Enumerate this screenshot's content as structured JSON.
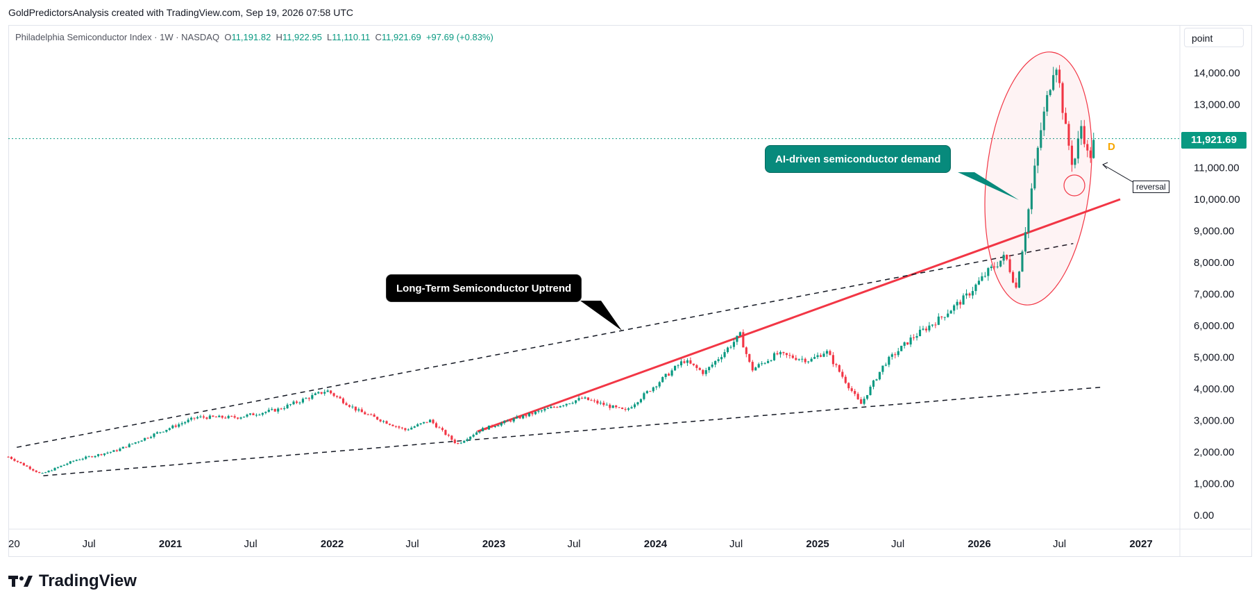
{
  "header": {
    "text": "GoldPredictorsAnalysis created with TradingView.com, Sep 19, 2026 07:58 UTC"
  },
  "legend": {
    "symbol": "Philadelphia Semiconductor Index · 1W · NASDAQ",
    "open_label": "O",
    "open": "11,191.82",
    "high_label": "H",
    "high": "11,922.95",
    "low_label": "L",
    "low": "11,110.11",
    "close_label": "C",
    "close": "11,921.69",
    "change": "+97.69 (+0.83%)"
  },
  "unit_label": "point",
  "last_price": "11,921.69",
  "brand": {
    "name": "TradingView"
  },
  "annotations": {
    "ai_callout": "AI-driven semiconductor demand",
    "uptrend_callout": "Long-Term Semiconductor Uptrend",
    "reversal": "reversal",
    "d_marker": "D"
  },
  "colors": {
    "up": "#089981",
    "down": "#f23645",
    "trendline": "#f23645",
    "callout_ai": "#078a7c",
    "callout_lt": "#000000"
  },
  "chart_data": {
    "type": "candlestick",
    "interval": "1W",
    "ylim": [
      0,
      15000
    ],
    "y_ticks": [
      "0.00",
      "1,000.00",
      "2,000.00",
      "3,000.00",
      "4,000.00",
      "5,000.00",
      "6,000.00",
      "7,000.00",
      "8,000.00",
      "9,000.00",
      "10,000.00",
      "11,000.00",
      "13,000.00",
      "14,000.00"
    ],
    "x_ticks": [
      {
        "label": "20",
        "date": "2020-01-01"
      },
      {
        "label": "Jul",
        "date": "2020-07-01"
      },
      {
        "label": "2021",
        "date": "2021-01-01"
      },
      {
        "label": "Jul",
        "date": "2021-07-01"
      },
      {
        "label": "2022",
        "date": "2022-01-01"
      },
      {
        "label": "Jul",
        "date": "2022-07-01"
      },
      {
        "label": "2023",
        "date": "2023-01-01"
      },
      {
        "label": "Jul",
        "date": "2023-07-01"
      },
      {
        "label": "2024",
        "date": "2024-01-01"
      },
      {
        "label": "Jul",
        "date": "2024-07-01"
      },
      {
        "label": "2025",
        "date": "2025-01-01"
      },
      {
        "label": "Jul",
        "date": "2025-07-01"
      },
      {
        "label": "2026",
        "date": "2026-01-01"
      },
      {
        "label": "Jul",
        "date": "2026-07-01"
      },
      {
        "label": "2027",
        "date": "2027-01-01"
      }
    ],
    "bold_x_ticks": [
      "2021",
      "2022",
      "2023",
      "2024",
      "2025",
      "2026",
      "2027"
    ],
    "price_path": [
      {
        "date": "2020-01-01",
        "value": 1850
      },
      {
        "date": "2020-03-15",
        "value": 1300
      },
      {
        "date": "2020-06-01",
        "value": 1750
      },
      {
        "date": "2020-09-01",
        "value": 2050
      },
      {
        "date": "2020-12-01",
        "value": 2600
      },
      {
        "date": "2021-03-01",
        "value": 3100
      },
      {
        "date": "2021-06-01",
        "value": 3100
      },
      {
        "date": "2021-09-01",
        "value": 3350
      },
      {
        "date": "2021-12-20",
        "value": 3950
      },
      {
        "date": "2022-03-01",
        "value": 3300
      },
      {
        "date": "2022-06-15",
        "value": 2700
      },
      {
        "date": "2022-08-10",
        "value": 3000
      },
      {
        "date": "2022-10-10",
        "value": 2250
      },
      {
        "date": "2022-12-01",
        "value": 2700
      },
      {
        "date": "2023-03-01",
        "value": 3100
      },
      {
        "date": "2023-07-20",
        "value": 3700
      },
      {
        "date": "2023-10-25",
        "value": 3300
      },
      {
        "date": "2024-03-05",
        "value": 4900
      },
      {
        "date": "2024-04-20",
        "value": 4500
      },
      {
        "date": "2024-07-10",
        "value": 5700
      },
      {
        "date": "2024-08-05",
        "value": 4600
      },
      {
        "date": "2024-10-01",
        "value": 5100
      },
      {
        "date": "2024-12-15",
        "value": 4900
      },
      {
        "date": "2025-01-20",
        "value": 5200
      },
      {
        "date": "2025-04-08",
        "value": 3500
      },
      {
        "date": "2025-06-01",
        "value": 4800
      },
      {
        "date": "2025-08-01",
        "value": 5600
      },
      {
        "date": "2025-10-01",
        "value": 6200
      },
      {
        "date": "2025-12-01",
        "value": 6900
      },
      {
        "date": "2026-01-20",
        "value": 7700
      },
      {
        "date": "2026-03-01",
        "value": 8200
      },
      {
        "date": "2026-03-25",
        "value": 7200
      },
      {
        "date": "2026-04-20",
        "value": 9500
      },
      {
        "date": "2026-05-20",
        "value": 12200
      },
      {
        "date": "2026-06-22",
        "value": 14500
      },
      {
        "date": "2026-07-15",
        "value": 12200
      },
      {
        "date": "2026-08-01",
        "value": 11000
      },
      {
        "date": "2026-08-20",
        "value": 12400
      },
      {
        "date": "2026-09-05",
        "value": 11200
      },
      {
        "date": "2026-09-19",
        "value": 11921.69
      }
    ],
    "last": {
      "open": 11191.82,
      "high": 11922.95,
      "low": 11110.11,
      "close": 11921.69,
      "change": 97.69,
      "change_pct": 0.83
    },
    "trendlines": [
      {
        "style": "solid",
        "color": "#f23645",
        "from": {
          "date": "2022-11-25",
          "value": 2650
        },
        "to": {
          "date": "2026-11-15",
          "value": 10000
        }
      },
      {
        "style": "dashed",
        "color": "#131722",
        "from": {
          "date": "2020-01-20",
          "value": 2150
        },
        "to": {
          "date": "2026-08-01",
          "value": 8600
        }
      },
      {
        "style": "dashed",
        "color": "#131722",
        "from": {
          "date": "2020-03-20",
          "value": 1250
        },
        "to": {
          "date": "2026-10-01",
          "value": 4050
        }
      }
    ]
  }
}
